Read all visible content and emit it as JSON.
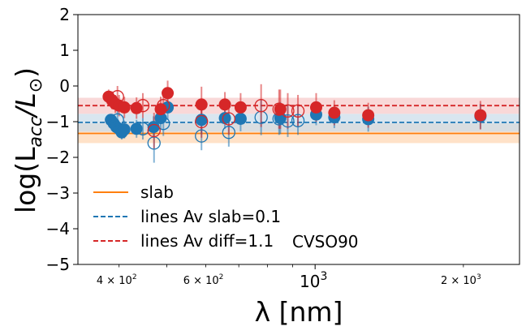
{
  "chart_data": {
    "type": "scatter",
    "title": "",
    "annotation": "CVSO90",
    "xlabel": "λ [nm]",
    "ylabel": "log(L_acc/L_⊙)",
    "x_scale": "log",
    "xlim": [
      330,
      2600
    ],
    "ylim": [
      -5,
      2
    ],
    "y_ticks": [
      {
        "value": 2,
        "label": "2"
      },
      {
        "value": 1,
        "label": "1"
      },
      {
        "value": 0,
        "label": "0"
      },
      {
        "value": -1,
        "label": "−1"
      },
      {
        "value": -2,
        "label": "−2"
      },
      {
        "value": -3,
        "label": "−3"
      },
      {
        "value": -4,
        "label": "−4"
      },
      {
        "value": -5,
        "label": "−5"
      }
    ],
    "x_major_ticks": [
      {
        "value": 1000,
        "base": "10",
        "exp": "3"
      }
    ],
    "x_minor_labeled_ticks": [
      {
        "value": 400,
        "mant": "4 × 10",
        "exp": "2"
      },
      {
        "value": 600,
        "mant": "6 × 10",
        "exp": "2"
      },
      {
        "value": 2000,
        "mant": "2 × 10",
        "exp": "3"
      }
    ],
    "x_minor_unlabeled_ticks": [
      500,
      700,
      800,
      900
    ],
    "hlines": [
      {
        "name": "slab",
        "label": "slab",
        "y": -1.33,
        "band": [
          -1.6,
          -1.05
        ],
        "color": "#ff7f0e",
        "band_color": "#ffd5b0",
        "dashed": false
      },
      {
        "name": "lines-av-slab",
        "label": "lines Av slab=0.1",
        "y": -1.02,
        "band": [
          -1.28,
          -0.78
        ],
        "color": "#1f77b4",
        "band_color": "#c9dbea",
        "dashed": true
      },
      {
        "name": "lines-av-diff",
        "label": "lines Av diff=1.1",
        "y": -0.55,
        "band": [
          -0.78,
          -0.33
        ],
        "color": "#d62728",
        "band_color": "#f6c8c8",
        "dashed": true
      }
    ],
    "series": [
      {
        "name": "lines Av slab=0.1 (filled)",
        "color": "#1f77b4",
        "filled": true,
        "points": [
          {
            "x": 385,
            "y": -0.95,
            "err": 0.15
          },
          {
            "x": 390,
            "y": -1.05,
            "err": 0.15
          },
          {
            "x": 395,
            "y": -1.15,
            "err": 0.2
          },
          {
            "x": 400,
            "y": -1.2,
            "err": 0.2
          },
          {
            "x": 405,
            "y": -1.3,
            "err": 0.2
          },
          {
            "x": 410,
            "y": -1.22,
            "err": 0.25
          },
          {
            "x": 434,
            "y": -1.2,
            "err": 0.25
          },
          {
            "x": 470,
            "y": -1.15,
            "err": 0.3
          },
          {
            "x": 486,
            "y": -0.9,
            "err": 0.3
          },
          {
            "x": 502,
            "y": -0.6,
            "err": 0.35
          },
          {
            "x": 588,
            "y": -0.95,
            "err": 0.4
          },
          {
            "x": 656,
            "y": -0.9,
            "err": 0.3
          },
          {
            "x": 706,
            "y": -0.92,
            "err": 0.35
          },
          {
            "x": 850,
            "y": -0.9,
            "err": 0.45
          },
          {
            "x": 1005,
            "y": -0.8,
            "err": 0.3
          },
          {
            "x": 1094,
            "y": -0.88,
            "err": 0.3
          },
          {
            "x": 1282,
            "y": -0.93,
            "err": 0.35
          },
          {
            "x": 2166,
            "y": -0.85,
            "err": 0.35
          }
        ]
      },
      {
        "name": "lines Av slab=0.1 (open)",
        "color": "#1f77b4",
        "filled": false,
        "points": [
          {
            "x": 397,
            "y": -0.95,
            "err": 0.3
          },
          {
            "x": 447,
            "y": -1.2,
            "err": 0.3
          },
          {
            "x": 471,
            "y": -1.6,
            "err": 0.55
          },
          {
            "x": 492,
            "y": -1.05,
            "err": 0.35
          },
          {
            "x": 588,
            "y": -1.4,
            "err": 0.4
          },
          {
            "x": 668,
            "y": -1.3,
            "err": 0.4
          },
          {
            "x": 777,
            "y": -0.88,
            "err": 0.5
          },
          {
            "x": 845,
            "y": -0.92,
            "err": 0.45
          },
          {
            "x": 880,
            "y": -0.98,
            "err": 0.45
          },
          {
            "x": 923,
            "y": -0.97,
            "err": 0.4
          }
        ]
      },
      {
        "name": "lines Av diff=1.1 (filled)",
        "color": "#d62728",
        "filled": true,
        "points": [
          {
            "x": 381,
            "y": -0.3,
            "err": 0.2
          },
          {
            "x": 387,
            "y": -0.4,
            "err": 0.25
          },
          {
            "x": 393,
            "y": -0.5,
            "err": 0.25
          },
          {
            "x": 400,
            "y": -0.55,
            "err": 0.3
          },
          {
            "x": 410,
            "y": -0.6,
            "err": 0.3
          },
          {
            "x": 434,
            "y": -0.62,
            "err": 0.3
          },
          {
            "x": 486,
            "y": -0.65,
            "err": 0.35
          },
          {
            "x": 502,
            "y": -0.2,
            "err": 0.35
          },
          {
            "x": 588,
            "y": -0.52,
            "err": 0.5
          },
          {
            "x": 656,
            "y": -0.52,
            "err": 0.35
          },
          {
            "x": 706,
            "y": -0.6,
            "err": 0.4
          },
          {
            "x": 850,
            "y": -0.65,
            "err": 0.55
          },
          {
            "x": 1005,
            "y": -0.6,
            "err": 0.4
          },
          {
            "x": 1094,
            "y": -0.75,
            "err": 0.35
          },
          {
            "x": 1282,
            "y": -0.82,
            "err": 0.35
          },
          {
            "x": 2166,
            "y": -0.82,
            "err": 0.4
          }
        ]
      },
      {
        "name": "lines Av diff=1.1 (open)",
        "color": "#d62728",
        "filled": false,
        "points": [
          {
            "x": 397,
            "y": -0.3,
            "err": 0.3
          },
          {
            "x": 447,
            "y": -0.55,
            "err": 0.35
          },
          {
            "x": 471,
            "y": -1.25,
            "err": 0.5
          },
          {
            "x": 492,
            "y": -0.55,
            "err": 0.4
          },
          {
            "x": 588,
            "y": -1.0,
            "err": 0.45
          },
          {
            "x": 668,
            "y": -0.92,
            "err": 0.45
          },
          {
            "x": 777,
            "y": -0.55,
            "err": 0.6
          },
          {
            "x": 845,
            "y": -0.65,
            "err": 0.55
          },
          {
            "x": 880,
            "y": -0.7,
            "err": 0.5
          },
          {
            "x": 923,
            "y": -0.7,
            "err": 0.45
          }
        ]
      }
    ],
    "legend": {
      "placement": "lower-left",
      "entries": [
        {
          "label": "slab",
          "color": "#ff7f0e",
          "dashed": false
        },
        {
          "label": "lines Av slab=0.1",
          "color": "#1f77b4",
          "dashed": true
        },
        {
          "label": "lines Av diff=1.1",
          "color": "#d62728",
          "dashed": true
        }
      ]
    }
  }
}
